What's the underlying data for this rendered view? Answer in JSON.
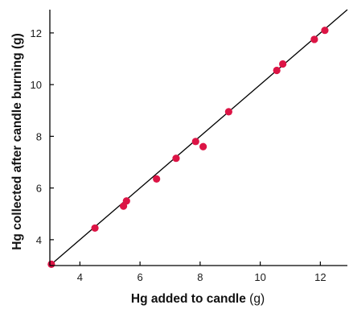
{
  "chart_data": {
    "type": "scatter",
    "xlabel": "Hg added to candle",
    "xlabel_unit": "(g)",
    "ylabel": "Hg collected after candle burning (g)",
    "xlim": [
      3,
      12.9
    ],
    "ylim": [
      3,
      12.9
    ],
    "xticks": [
      4,
      6,
      8,
      10,
      12
    ],
    "yticks": [
      4,
      6,
      8,
      10,
      12
    ],
    "grid": false,
    "fit_line": {
      "x": [
        3,
        12.9
      ],
      "y": [
        3,
        12.9
      ]
    },
    "x": [
      3.05,
      4.5,
      5.45,
      5.55,
      6.55,
      7.2,
      7.85,
      8.1,
      8.95,
      10.55,
      10.75,
      11.8,
      12.15
    ],
    "y": [
      3.05,
      4.45,
      5.3,
      5.5,
      6.35,
      7.15,
      7.8,
      7.6,
      8.95,
      10.55,
      10.8,
      11.75,
      12.1
    ]
  },
  "colors": {
    "point": "#dc1445",
    "axis": "#000000",
    "line": "#000000"
  }
}
